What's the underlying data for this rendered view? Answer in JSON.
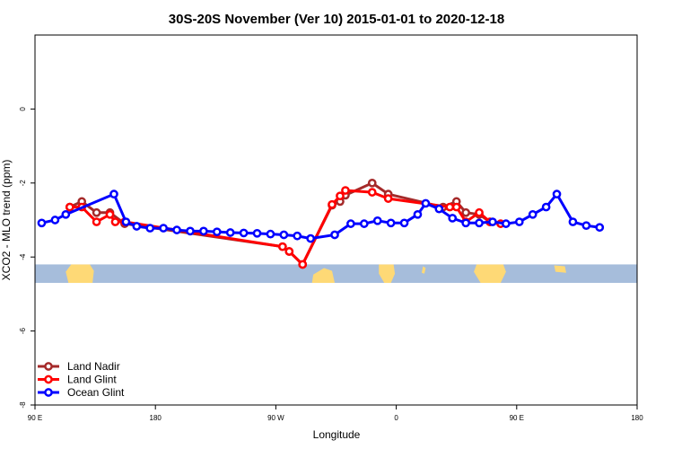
{
  "chart_data": {
    "type": "line",
    "title": "30S-20S November (Ver 10)   2015-01-01 to 2020-12-18",
    "xlabel": "Longitude",
    "ylabel": "XCO2 - MLO trend (ppm)",
    "xlim": [
      90,
      540
    ],
    "ylim": [
      -8,
      2
    ],
    "x_ticks": [
      {
        "value": 90,
        "label": "90 E"
      },
      {
        "value": 180,
        "label": "180"
      },
      {
        "value": 270,
        "label": "90 W"
      },
      {
        "value": 360,
        "label": "0"
      },
      {
        "value": 450,
        "label": "90 E"
      },
      {
        "value": 540,
        "label": "180"
      }
    ],
    "y_ticks": [
      {
        "value": 0,
        "label": "0"
      },
      {
        "value": -2,
        "label": "-2"
      },
      {
        "value": -4,
        "label": "-4"
      },
      {
        "value": -6,
        "label": "-6"
      },
      {
        "value": -8,
        "label": "-8"
      }
    ],
    "grid": false,
    "legend_position": "bottom-left",
    "map_band": {
      "y_top": -4.2,
      "y_bottom": -4.7,
      "ocean_color": "#a6bddb",
      "land_color": "#fed976"
    },
    "series": [
      {
        "name": "Land Nadir",
        "color": "#a52a2a",
        "points": [
          [
            116,
            -2.65
          ],
          [
            125,
            -2.5
          ],
          [
            136,
            -2.8
          ],
          [
            146,
            -2.8
          ],
          [
            157,
            -3.1
          ],
          [
            275,
            -3.72
          ],
          [
            280,
            -3.85
          ],
          [
            290,
            -4.2
          ],
          [
            312,
            -2.6
          ],
          [
            318,
            -2.5
          ],
          [
            322,
            -2.33
          ],
          [
            342,
            -2.0
          ],
          [
            354,
            -2.3
          ],
          [
            395,
            -2.65
          ],
          [
            405,
            -2.5
          ],
          [
            412,
            -2.8
          ],
          [
            422,
            -2.85
          ],
          [
            430,
            -3.05
          ]
        ]
      },
      {
        "name": "Land Glint",
        "color": "#ff0000",
        "points": [
          [
            116,
            -2.65
          ],
          [
            125,
            -2.65
          ],
          [
            136,
            -3.05
          ],
          [
            146,
            -2.85
          ],
          [
            150,
            -3.05
          ],
          [
            157,
            -3.05
          ],
          [
            275,
            -3.72
          ],
          [
            280,
            -3.85
          ],
          [
            290,
            -4.2
          ],
          [
            312,
            -2.58
          ],
          [
            318,
            -2.35
          ],
          [
            322,
            -2.2
          ],
          [
            342,
            -2.25
          ],
          [
            354,
            -2.42
          ],
          [
            400,
            -2.65
          ],
          [
            405,
            -2.65
          ],
          [
            412,
            -3.05
          ],
          [
            422,
            -2.8
          ],
          [
            430,
            -3.05
          ],
          [
            438,
            -3.1
          ]
        ]
      },
      {
        "name": "Ocean Glint",
        "color": "#0000ff",
        "points": [
          [
            95,
            -3.08
          ],
          [
            105,
            -3.0
          ],
          [
            113,
            -2.85
          ],
          [
            149,
            -2.3
          ],
          [
            158,
            -3.05
          ],
          [
            166,
            -3.17
          ],
          [
            176,
            -3.22
          ],
          [
            186,
            -3.22
          ],
          [
            196,
            -3.27
          ],
          [
            206,
            -3.3
          ],
          [
            216,
            -3.3
          ],
          [
            226,
            -3.32
          ],
          [
            236,
            -3.34
          ],
          [
            246,
            -3.35
          ],
          [
            256,
            -3.36
          ],
          [
            266,
            -3.38
          ],
          [
            276,
            -3.4
          ],
          [
            286,
            -3.43
          ],
          [
            296,
            -3.5
          ],
          [
            314,
            -3.4
          ],
          [
            326,
            -3.1
          ],
          [
            336,
            -3.1
          ],
          [
            346,
            -3.02
          ],
          [
            356,
            -3.08
          ],
          [
            366,
            -3.08
          ],
          [
            376,
            -2.85
          ],
          [
            382,
            -2.55
          ],
          [
            392,
            -2.7
          ],
          [
            402,
            -2.95
          ],
          [
            412,
            -3.08
          ],
          [
            422,
            -3.08
          ],
          [
            432,
            -3.05
          ],
          [
            442,
            -3.1
          ],
          [
            452,
            -3.05
          ],
          [
            462,
            -2.85
          ],
          [
            472,
            -2.65
          ],
          [
            480,
            -2.3
          ],
          [
            492,
            -3.05
          ],
          [
            502,
            -3.15
          ],
          [
            512,
            -3.2
          ]
        ]
      }
    ]
  }
}
